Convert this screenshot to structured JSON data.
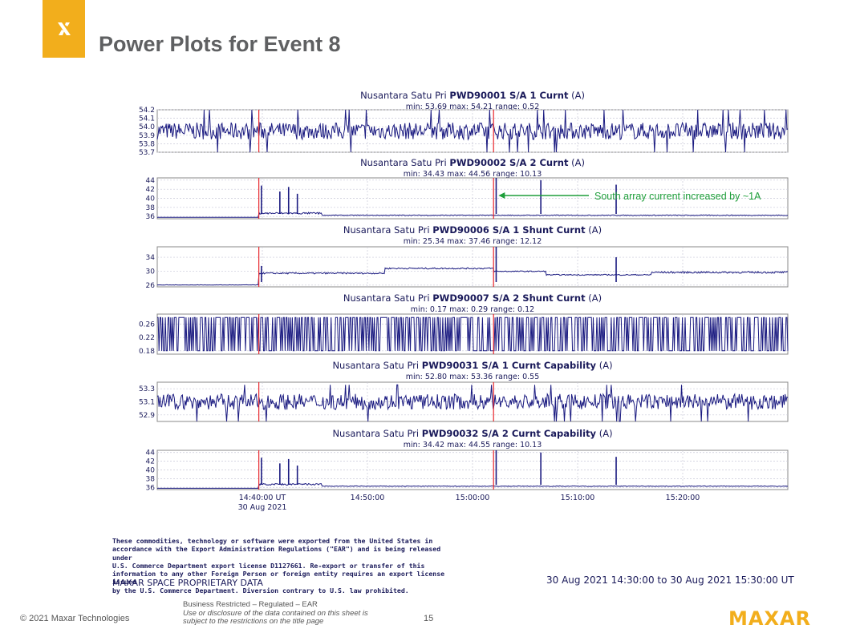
{
  "slide": {
    "title": "Power Plots for Event 8",
    "annotation": "South array current increased by ~1A",
    "time_range": "30 Aug 2021 14:30:00 to 30 Aug 2021 15:30:00 UT",
    "export_notice": [
      "These commodities, technology or software were exported from the United States in",
      "accordance with the Export Administration Regulations (\"EAR\") and is being released under",
      "U.S. Commerce Department export license D1127661. Re-export or transfer of this",
      "information to any other Foreign Person or foreign entity requires an export license issued",
      "by the U.S. Commerce Department. Diversion contrary to U.S. law prohibited."
    ],
    "proprietary": "MAXAR SPACE PROPRIETARY DATA",
    "footer_copyright": "© 2021 Maxar Technologies",
    "footer_restriction": "Business Restricted – Regulated – EAR",
    "footer_disclosure_1": "Use or disclosure of the data contained on this sheet is",
    "footer_disclosure_2": "subject to the restrictions on the title page",
    "page_number": "15",
    "brand": "MAXAR"
  },
  "colors": {
    "brand": "#f2ae1c",
    "series": "#1a1a80",
    "event_marker": "#e8262c",
    "annotation": "#1e9e3a",
    "title": "#5f6062"
  },
  "chart_data": {
    "type": "line",
    "x_ticks": [
      {
        "time": "14:40:00",
        "label": [
          "14:40:00 UT",
          "30 Aug 2021"
        ]
      },
      {
        "time": "14:50:00",
        "label": [
          "14:50:00"
        ]
      },
      {
        "time": "15:00:00",
        "label": [
          "15:00:00"
        ]
      },
      {
        "time": "15:10:00",
        "label": [
          "15:10:00"
        ]
      },
      {
        "time": "15:20:00",
        "label": [
          "15:20:00"
        ]
      }
    ],
    "xlim": [
      "14:30:00",
      "15:30:00"
    ],
    "event_markers": [
      "14:39:40",
      "15:02:00"
    ],
    "annotation_time": "15:02:10",
    "panels": [
      {
        "prefix": "Nusantara Satu Pri ",
        "id": "PWD90001 S/A 1 Curnt",
        "unit": " (A)",
        "stats": "min: 53.69   max: 54.21   range: 0.52",
        "ylim": [
          53.7,
          54.2
        ],
        "ticks": [
          "54.2",
          "54.1",
          "54.0",
          "53.9",
          "53.8",
          "53.7"
        ],
        "tick_values": [
          54.2,
          54.1,
          54.0,
          53.9,
          53.8,
          53.7
        ],
        "pattern": "noise",
        "low": 53.85,
        "high": 54.05,
        "min": 53.69,
        "max": 54.21
      },
      {
        "prefix": "Nusantara Satu Pri ",
        "id": "PWD90002 S/A 2 Curnt",
        "unit": " (A)",
        "stats": "min: 34.43   max: 44.56   range: 10.13",
        "ylim": [
          35.5,
          44.5
        ],
        "ticks": [
          "44",
          "42",
          "40",
          "38",
          "36"
        ],
        "tick_values": [
          44,
          42,
          40,
          38,
          36
        ],
        "pattern": "steady",
        "level": 36.2,
        "spikes": [
          [
            "14:39:55",
            42.8
          ],
          [
            "14:41:40",
            41.5
          ],
          [
            "14:42:30",
            42.5
          ],
          [
            "14:43:20",
            41.0
          ],
          [
            "15:02:15",
            44.5
          ],
          [
            "15:06:30",
            44.0
          ],
          [
            "15:13:40",
            43.0
          ]
        ]
      },
      {
        "prefix": "Nusantara Satu Pri ",
        "id": "PWD90006 S/A 1 Shunt Curnt",
        "unit": " (A)",
        "stats": "min: 25.34   max: 37.46   range: 12.12",
        "ylim": [
          25.5,
          37.0
        ],
        "ticks": [
          "34",
          "30",
          "26"
        ],
        "tick_values": [
          34,
          30,
          26
        ],
        "pattern": "shunt1",
        "spikes": [
          [
            "14:39:55",
            31.5
          ],
          [
            "15:02:15",
            37.0
          ],
          [
            "15:13:40",
            34.0
          ]
        ]
      },
      {
        "prefix": "Nusantara Satu Pri ",
        "id": "PWD90007 S/A 2 Shunt Curnt",
        "unit": " (A)",
        "stats": "min: 0.17   max: 0.29   range: 0.12",
        "ylim": [
          0.17,
          0.29
        ],
        "ticks": [
          "0.26",
          "0.22",
          "0.18"
        ],
        "tick_values": [
          0.26,
          0.22,
          0.18
        ],
        "pattern": "toggle",
        "low": 0.18,
        "high": 0.28
      },
      {
        "prefix": "Nusantara Satu Pri ",
        "id": "PWD90031 S/A 1 Curnt Capability",
        "unit": " (A)",
        "stats": "min: 52.80   max: 53.36   range: 0.55",
        "ylim": [
          52.8,
          53.4
        ],
        "ticks": [
          "53.3",
          "53.1",
          "52.9"
        ],
        "tick_values": [
          53.3,
          53.1,
          52.9
        ],
        "pattern": "noise",
        "low": 52.98,
        "high": 53.22,
        "min": 52.8,
        "max": 53.36
      },
      {
        "prefix": "Nusantara Satu Pri ",
        "id": "PWD90032 S/A 2 Curnt Capability",
        "unit": " (A)",
        "stats": "min: 34.42   max: 44.55   range: 10.13",
        "ylim": [
          35.5,
          44.5
        ],
        "ticks": [
          "44",
          "42",
          "40",
          "38",
          "36"
        ],
        "tick_values": [
          44,
          42,
          40,
          38,
          36
        ],
        "pattern": "steady",
        "level": 36.2,
        "spikes": [
          [
            "14:39:55",
            42.8
          ],
          [
            "14:41:40",
            41.5
          ],
          [
            "14:42:30",
            42.5
          ],
          [
            "14:43:20",
            41.0
          ],
          [
            "15:02:15",
            44.5
          ],
          [
            "15:06:30",
            44.0
          ],
          [
            "15:13:40",
            43.0
          ]
        ]
      }
    ]
  }
}
